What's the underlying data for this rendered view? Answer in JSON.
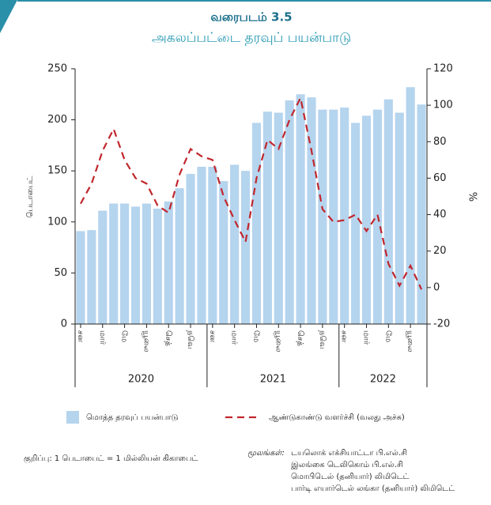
{
  "chart_data": {
    "type": "bar_line",
    "title": "வரைபடம் 3.5",
    "subtitle": "அகலப்பட்டை தரவுப் பயன்பாடு",
    "y_label": "பெடாபைட்",
    "y2_label": "%",
    "groups": [
      {
        "label": "2020",
        "categories": [
          "சன",
          null,
          "மார்",
          null,
          "மே",
          null,
          "யூலை",
          null,
          "செத்",
          null,
          "நவெ",
          null
        ]
      },
      {
        "label": "2021",
        "categories": [
          "சன",
          null,
          "மார்",
          null,
          "மே",
          null,
          "யூலை",
          null,
          "செத்",
          null,
          "நவெ",
          null
        ]
      },
      {
        "label": "2022",
        "categories": [
          "சன",
          null,
          "மார்",
          null,
          "மே",
          null,
          "யூலை",
          null
        ]
      }
    ],
    "series": [
      {
        "name": "மொத்த தரவுப் பயன்பாடு",
        "type": "bar",
        "axis": "y",
        "color": "#b5d4ee",
        "values": [
          91,
          92,
          111,
          118,
          118,
          115,
          118,
          113,
          120,
          133,
          147,
          154,
          154,
          140,
          156,
          150,
          197,
          208,
          207,
          219,
          225,
          222,
          210,
          210,
          212,
          197,
          204,
          210,
          220,
          207,
          232,
          215
        ]
      },
      {
        "name": "ஆண்டுகாண்டு வளர்ச்சி (வலது அச்சு)",
        "type": "line",
        "axis": "y2",
        "color": "#c1272d",
        "values": [
          46,
          57,
          75,
          87,
          70,
          60,
          57,
          45,
          41,
          62,
          76,
          72,
          70,
          50,
          37,
          25,
          60,
          81,
          76,
          92,
          104,
          75,
          43,
          36,
          37,
          40,
          31,
          40,
          13,
          1,
          12,
          -1
        ]
      }
    ],
    "ylim": [
      0,
      250
    ],
    "yticks": [
      0,
      50,
      100,
      150,
      200,
      250
    ],
    "y2lim": [
      -20,
      120
    ],
    "y2ticks": [
      -20,
      0,
      20,
      40,
      60,
      80,
      100,
      120
    ],
    "note": "குறிப்பு: 1 பெடாபைட் = 1 மில்லியன் கிகாபைட்",
    "sources_label": "மூலங்கள்:",
    "sources": [
      "டயலொக் எக்சியாட்டா பி.எல்.சி",
      "இலங்கை டெலிகொம் பி.எல்.சி",
      "மொபிடெல் (தனியார்) லிமிடெட்",
      "பார்டி எயார்டெல் லங்கா (தனியார்) லிமிடெட்"
    ]
  }
}
